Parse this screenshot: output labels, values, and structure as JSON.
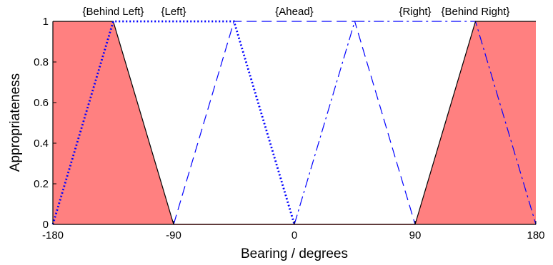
{
  "chart_data": {
    "type": "line",
    "title": "",
    "xlabel": "Bearing / degrees",
    "ylabel": "Appropriateness",
    "xlim": [
      -180,
      180
    ],
    "ylim": [
      0,
      1
    ],
    "x_ticks": [
      -180,
      -90,
      0,
      90,
      180
    ],
    "x_tick_labels": [
      "-180",
      "-90",
      "0",
      "90",
      "180"
    ],
    "y_ticks": [
      0,
      0.2,
      0.4,
      0.6,
      0.8,
      1
    ],
    "y_tick_labels": [
      "0",
      "0.2",
      "0.4",
      "0.6",
      "0.8",
      "1"
    ],
    "grid": false,
    "series": [
      {
        "name": "{Behind Left}",
        "style": "solid-filled",
        "color": "#000000",
        "fill": "#ff8080",
        "x": [
          -180,
          -135,
          -90
        ],
        "y": [
          1,
          1,
          0
        ]
      },
      {
        "name": "{Left}",
        "style": "dotted",
        "color": "#0000ff",
        "x": [
          -180,
          -135,
          -45,
          0
        ],
        "y": [
          0,
          1,
          1,
          0
        ]
      },
      {
        "name": "{Ahead}",
        "style": "dashed",
        "color": "#0000ff",
        "x": [
          -90,
          -45,
          45,
          90
        ],
        "y": [
          0,
          1,
          1,
          0
        ]
      },
      {
        "name": "{Right}",
        "style": "dash-dot",
        "color": "#0000ff",
        "x": [
          0,
          45,
          135,
          180
        ],
        "y": [
          0,
          1,
          1,
          0
        ]
      },
      {
        "name": "{Behind Right}",
        "style": "solid-filled",
        "color": "#000000",
        "fill": "#ff8080",
        "x": [
          90,
          135,
          180
        ],
        "y": [
          0,
          1,
          1
        ]
      }
    ],
    "baseline": {
      "x": [
        -90,
        90
      ],
      "y": [
        0,
        0
      ],
      "color": "#ff4040"
    },
    "region_labels": [
      {
        "text": "{Behind Left}",
        "x": -135
      },
      {
        "text": "{Left}",
        "x": -90
      },
      {
        "text": "{Ahead}",
        "x": 0
      },
      {
        "text": "{Right}",
        "x": 90
      },
      {
        "text": "{Behind Right}",
        "x": 135
      }
    ]
  }
}
